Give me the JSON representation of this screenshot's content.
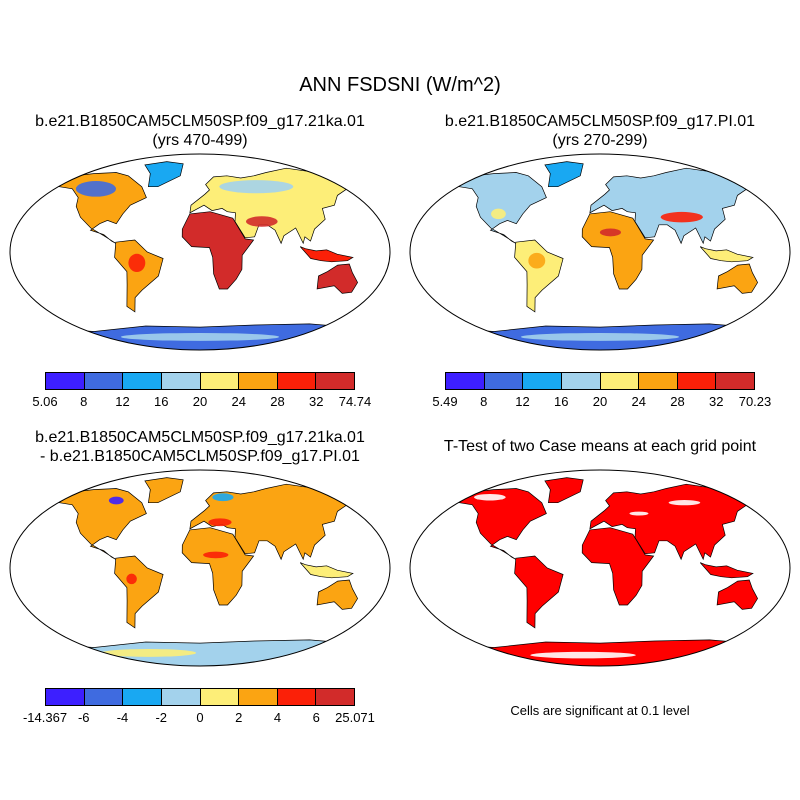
{
  "figure": {
    "title": "ANN FSDSNI (W/m^2)"
  },
  "panels": [
    {
      "id": "case",
      "title_line1": "b.e21.B1850CAM5CLM50SP.f09_g17.21ka.01",
      "title_line2": "(yrs 470-499)",
      "colorbar_colors": [
        "#3d1fff",
        "#3f6be0",
        "#19a8f2",
        "#a3d2ec",
        "#fdee78",
        "#fba412",
        "#fb2008",
        "#d22b2a"
      ],
      "colorbar_labels": [
        "5.06",
        "8",
        "12",
        "16",
        "20",
        "24",
        "28",
        "32",
        "74.74"
      ]
    },
    {
      "id": "control",
      "title_line1": "b.e21.B1850CAM5CLM50SP.f09_g17.PI.01",
      "title_line2": "(yrs 270-299)",
      "colorbar_colors": [
        "#3d1fff",
        "#3f6be0",
        "#19a8f2",
        "#a3d2ec",
        "#fdee78",
        "#fba412",
        "#fb2008",
        "#d22b2a"
      ],
      "colorbar_labels": [
        "5.49",
        "8",
        "12",
        "16",
        "20",
        "24",
        "28",
        "32",
        "70.23"
      ]
    },
    {
      "id": "difference",
      "title_line1": "b.e21.B1850CAM5CLM50SP.f09_g17.21ka.01",
      "title_line2": "- b.e21.B1850CAM5CLM50SP.f09_g17.PI.01",
      "colorbar_colors": [
        "#3d1fff",
        "#3f6be0",
        "#19a8f2",
        "#a3d2ec",
        "#fdee78",
        "#fba412",
        "#fb2008",
        "#d22b2a"
      ],
      "colorbar_labels": [
        "-14.367",
        "-6",
        "-4",
        "-2",
        "0",
        "2",
        "4",
        "6",
        "25.071"
      ]
    },
    {
      "id": "ttest",
      "title_line1": "T-Test of two Case means at each grid point",
      "note": "Cells are significant at 0.1 level",
      "fill_color": "#ff0000"
    }
  ]
}
